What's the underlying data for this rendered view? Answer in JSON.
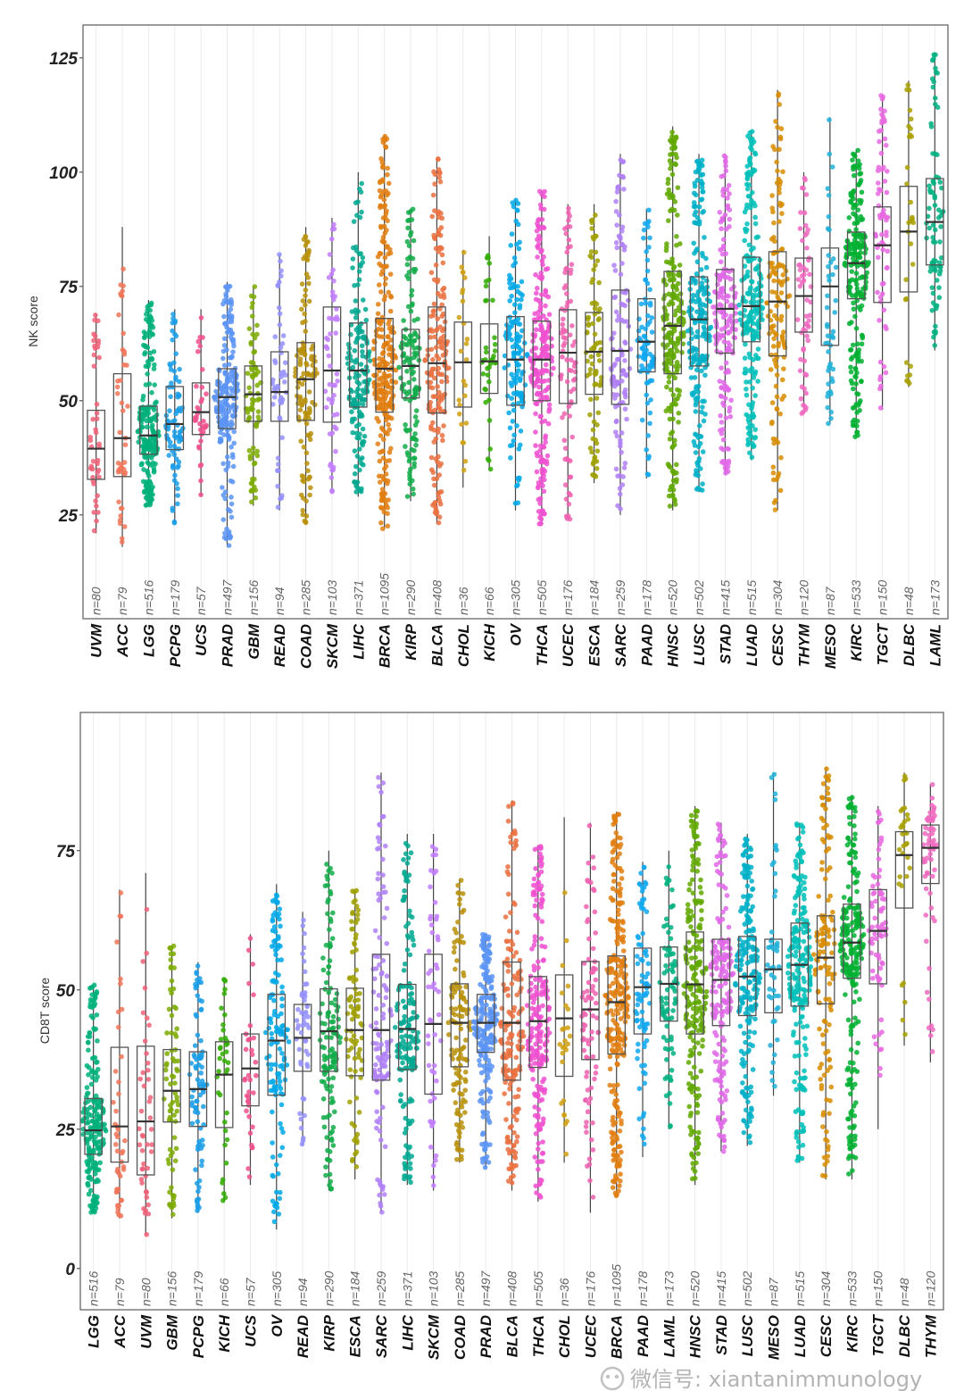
{
  "colors": {
    "UVM": "#f06078",
    "ACC": "#f07458",
    "LGG": "#00b07a",
    "PCPG": "#1a9ee8",
    "UCS": "#f0508c",
    "PRAD": "#5a94f5",
    "GBM": "#7caa00",
    "READ": "#9590ff",
    "COAD": "#b8900a",
    "SKCM": "#c27cff",
    "LIHC": "#00a890",
    "BRCA": "#e07e10",
    "KIRP": "#10ac48",
    "BLCA": "#ea7040",
    "CHOL": "#d0a010",
    "KICH": "#30ac00",
    "OV": "#00a8e8",
    "THCA": "#f050d0",
    "UCEC": "#f060b0",
    "ESCA": "#a0a000",
    "SARC": "#b080f8",
    "PAAD": "#10a8f0",
    "HNSC": "#60a800",
    "LUSC": "#00b0c8",
    "STAD": "#e068e8",
    "LUAD": "#00c0b8",
    "CESC": "#d88c00",
    "THYM": "#f068c0",
    "MESO": "#20b0d8",
    "KIRC": "#00b030",
    "TGCT": "#e868e0",
    "DLBC": "#a8a000",
    "LAML": "#00b080"
  },
  "chart_data": [
    {
      "type": "box",
      "ylabel": "NK score",
      "xlabel": "",
      "ylim": [
        2.3,
        132.2
      ],
      "yticks": [
        25,
        50,
        75,
        100,
        125
      ],
      "grid": "vertical",
      "points": "jittered",
      "boxes": [
        {
          "category": "UVM",
          "n": 80,
          "lower_whisker": 21,
          "q1": 32.8,
          "median": 39.5,
          "q3": 47.9,
          "upper_whisker": 69
        },
        {
          "category": "ACC",
          "n": 79,
          "lower_whisker": 18,
          "q1": 33.4,
          "median": 41.8,
          "q3": 55.9,
          "upper_whisker": 88
        },
        {
          "category": "LGG",
          "n": 516,
          "lower_whisker": 27,
          "q1": 38.3,
          "median": 42.4,
          "q3": 48.8,
          "upper_whisker": 72
        },
        {
          "category": "PCPG",
          "n": 179,
          "lower_whisker": 23,
          "q1": 39.3,
          "median": 44.9,
          "q3": 53.1,
          "upper_whisker": 70
        },
        {
          "category": "UCS",
          "n": 57,
          "lower_whisker": 29,
          "q1": 42.6,
          "median": 47.5,
          "q3": 53.9,
          "upper_whisker": 70
        },
        {
          "category": "PRAD",
          "n": 497,
          "lower_whisker": 18,
          "q1": 43.9,
          "median": 50.8,
          "q3": 57.0,
          "upper_whisker": 76
        },
        {
          "category": "GBM",
          "n": 156,
          "lower_whisker": 27,
          "q1": 45.5,
          "median": 51.4,
          "q3": 57.6,
          "upper_whisker": 75
        },
        {
          "category": "READ",
          "n": 94,
          "lower_whisker": 26,
          "q1": 45.5,
          "median": 51.9,
          "q3": 60.7,
          "upper_whisker": 82
        },
        {
          "category": "COAD",
          "n": 285,
          "lower_whisker": 23,
          "q1": 45.7,
          "median": 54.7,
          "q3": 62.7,
          "upper_whisker": 88
        },
        {
          "category": "SKCM",
          "n": 103,
          "lower_whisker": 30,
          "q1": 45.3,
          "median": 56.6,
          "q3": 70.5,
          "upper_whisker": 90
        },
        {
          "category": "LIHC",
          "n": 371,
          "lower_whisker": 29,
          "q1": 48.6,
          "median": 56.6,
          "q3": 67.0,
          "upper_whisker": 100
        },
        {
          "category": "BRCA",
          "n": 1095,
          "lower_whisker": 22,
          "q1": 47.5,
          "median": 57.0,
          "q3": 68.0,
          "upper_whisker": 108
        },
        {
          "category": "KIRP",
          "n": 290,
          "lower_whisker": 28,
          "q1": 50.6,
          "median": 57.6,
          "q3": 65.6,
          "upper_whisker": 92
        },
        {
          "category": "BLCA",
          "n": 408,
          "lower_whisker": 23,
          "q1": 47.3,
          "median": 58.2,
          "q3": 70.5,
          "upper_whisker": 103
        },
        {
          "category": "CHOL",
          "n": 36,
          "lower_whisker": 31,
          "q1": 48.6,
          "median": 58.4,
          "q3": 67.2,
          "upper_whisker": 83
        },
        {
          "category": "KICH",
          "n": 66,
          "lower_whisker": 35,
          "q1": 51.6,
          "median": 58.6,
          "q3": 66.8,
          "upper_whisker": 86
        },
        {
          "category": "OV",
          "n": 305,
          "lower_whisker": 26,
          "q1": 49.0,
          "median": 59.0,
          "q3": 68.4,
          "upper_whisker": 94
        },
        {
          "category": "THCA",
          "n": 505,
          "lower_whisker": 23,
          "q1": 50.0,
          "median": 59.0,
          "q3": 67.4,
          "upper_whisker": 96
        },
        {
          "category": "UCEC",
          "n": 176,
          "lower_whisker": 24,
          "q1": 49.4,
          "median": 60.5,
          "q3": 69.9,
          "upper_whisker": 93
        },
        {
          "category": "ESCA",
          "n": 184,
          "lower_whisker": 32,
          "q1": 51.4,
          "median": 60.7,
          "q3": 69.3,
          "upper_whisker": 93
        },
        {
          "category": "SARC",
          "n": 259,
          "lower_whisker": 25,
          "q1": 49.2,
          "median": 60.9,
          "q3": 74.2,
          "upper_whisker": 104
        },
        {
          "category": "PAAD",
          "n": 178,
          "lower_whisker": 33,
          "q1": 56.3,
          "median": 62.9,
          "q3": 72.3,
          "upper_whisker": 92
        },
        {
          "category": "HNSC",
          "n": 520,
          "lower_whisker": 26,
          "q1": 55.9,
          "median": 66.4,
          "q3": 78.3,
          "upper_whisker": 110
        },
        {
          "category": "LUSC",
          "n": 502,
          "lower_whisker": 30,
          "q1": 57.6,
          "median": 67.8,
          "q3": 77.1,
          "upper_whisker": 104
        },
        {
          "category": "STAD",
          "n": 415,
          "lower_whisker": 34,
          "q1": 60.4,
          "median": 70.1,
          "q3": 78.7,
          "upper_whisker": 104
        },
        {
          "category": "LUAD",
          "n": 515,
          "lower_whisker": 37,
          "q1": 62.9,
          "median": 70.7,
          "q3": 81.4,
          "upper_whisker": 109
        },
        {
          "category": "CESC",
          "n": 304,
          "lower_whisker": 26,
          "q1": 59.8,
          "median": 71.7,
          "q3": 82.6,
          "upper_whisker": 118
        },
        {
          "category": "THYM",
          "n": 120,
          "lower_whisker": 47,
          "q1": 65.0,
          "median": 72.9,
          "q3": 81.2,
          "upper_whisker": 100
        },
        {
          "category": "MESO",
          "n": 87,
          "lower_whisker": 45,
          "q1": 62.1,
          "median": 75.0,
          "q3": 83.4,
          "upper_whisker": 112
        },
        {
          "category": "KIRC",
          "n": 533,
          "lower_whisker": 42,
          "q1": 72.3,
          "median": 80.1,
          "q3": 86.9,
          "upper_whisker": 105
        },
        {
          "category": "TGCT",
          "n": 150,
          "lower_whisker": 48,
          "q1": 71.5,
          "median": 84.0,
          "q3": 92.4,
          "upper_whisker": 117
        },
        {
          "category": "DLBC",
          "n": 48,
          "lower_whisker": 53,
          "q1": 73.8,
          "median": 87.0,
          "q3": 96.9,
          "upper_whisker": 120
        },
        {
          "category": "LAML",
          "n": 173,
          "lower_whisker": 61,
          "q1": 79.7,
          "median": 89.1,
          "q3": 98.6,
          "upper_whisker": 126
        }
      ]
    },
    {
      "type": "box",
      "ylabel": "CD8T score",
      "xlabel": "",
      "ylim": [
        -7.4,
        99.8
      ],
      "yticks": [
        0,
        25,
        50,
        75
      ],
      "grid": "vertical",
      "points": "jittered",
      "boxes": [
        {
          "category": "LGG",
          "n": 516,
          "lower_whisker": 10,
          "q1": 20.5,
          "median": 24.8,
          "q3": 30.5,
          "upper_whisker": 51
        },
        {
          "category": "ACC",
          "n": 79,
          "lower_whisker": 9,
          "q1": 19.1,
          "median": 25.5,
          "q3": 39.7,
          "upper_whisker": 68
        },
        {
          "category": "UVM",
          "n": 80,
          "lower_whisker": 6,
          "q1": 16.8,
          "median": 26.4,
          "q3": 39.9,
          "upper_whisker": 71
        },
        {
          "category": "GBM",
          "n": 156,
          "lower_whisker": 9,
          "q1": 26.3,
          "median": 31.9,
          "q3": 39.3,
          "upper_whisker": 58
        },
        {
          "category": "PCPG",
          "n": 179,
          "lower_whisker": 10,
          "q1": 25.5,
          "median": 32.2,
          "q3": 38.9,
          "upper_whisker": 55
        },
        {
          "category": "KICH",
          "n": 66,
          "lower_whisker": 12,
          "q1": 25.3,
          "median": 34.8,
          "q3": 40.7,
          "upper_whisker": 52
        },
        {
          "category": "UCS",
          "n": 57,
          "lower_whisker": 15,
          "q1": 29.2,
          "median": 35.9,
          "q3": 42.1,
          "upper_whisker": 60
        },
        {
          "category": "OV",
          "n": 305,
          "lower_whisker": 7,
          "q1": 31.1,
          "median": 40.9,
          "q3": 49.2,
          "upper_whisker": 69
        },
        {
          "category": "READ",
          "n": 94,
          "lower_whisker": 22,
          "q1": 35.4,
          "median": 41.4,
          "q3": 47.4,
          "upper_whisker": 64
        },
        {
          "category": "KIRP",
          "n": 290,
          "lower_whisker": 14,
          "q1": 35.4,
          "median": 42.6,
          "q3": 50.2,
          "upper_whisker": 75
        },
        {
          "category": "ESCA",
          "n": 184,
          "lower_whisker": 16,
          "q1": 34.6,
          "median": 42.8,
          "q3": 50.3,
          "upper_whisker": 68
        },
        {
          "category": "SARC",
          "n": 259,
          "lower_whisker": 10,
          "q1": 33.8,
          "median": 42.8,
          "q3": 56.4,
          "upper_whisker": 89
        },
        {
          "category": "LIHC",
          "n": 371,
          "lower_whisker": 15,
          "q1": 35.7,
          "median": 43.0,
          "q3": 51.0,
          "upper_whisker": 78
        },
        {
          "category": "SKCM",
          "n": 103,
          "lower_whisker": 14,
          "q1": 31.3,
          "median": 43.9,
          "q3": 56.4,
          "upper_whisker": 78
        },
        {
          "category": "COAD",
          "n": 285,
          "lower_whisker": 19,
          "q1": 36.2,
          "median": 44.1,
          "q3": 51.1,
          "upper_whisker": 70
        },
        {
          "category": "PRAD",
          "n": 497,
          "lower_whisker": 18,
          "q1": 38.8,
          "median": 44.1,
          "q3": 49.2,
          "upper_whisker": 60
        },
        {
          "category": "BLCA",
          "n": 408,
          "lower_whisker": 14,
          "q1": 33.8,
          "median": 44.1,
          "q3": 55.0,
          "upper_whisker": 84
        },
        {
          "category": "THCA",
          "n": 505,
          "lower_whisker": 12,
          "q1": 36.1,
          "median": 44.4,
          "q3": 52.4,
          "upper_whisker": 76
        },
        {
          "category": "CHOL",
          "n": 36,
          "lower_whisker": 19,
          "q1": 34.5,
          "median": 44.9,
          "q3": 52.7,
          "upper_whisker": 81
        },
        {
          "category": "UCEC",
          "n": 176,
          "lower_whisker": 10,
          "q1": 37.5,
          "median": 46.5,
          "q3": 55.1,
          "upper_whisker": 80
        },
        {
          "category": "BRCA",
          "n": 1095,
          "lower_whisker": 13,
          "q1": 38.5,
          "median": 47.8,
          "q3": 56.1,
          "upper_whisker": 82
        },
        {
          "category": "PAAD",
          "n": 178,
          "lower_whisker": 20,
          "q1": 42.1,
          "median": 50.5,
          "q3": 57.5,
          "upper_whisker": 73
        },
        {
          "category": "LAML",
          "n": 173,
          "lower_whisker": 25,
          "q1": 44.4,
          "median": 51.1,
          "q3": 57.7,
          "upper_whisker": 75
        },
        {
          "category": "HNSC",
          "n": 520,
          "lower_whisker": 15,
          "q1": 42.1,
          "median": 51.0,
          "q3": 60.4,
          "upper_whisker": 83
        },
        {
          "category": "STAD",
          "n": 415,
          "lower_whisker": 21,
          "q1": 43.6,
          "median": 51.8,
          "q3": 59.1,
          "upper_whisker": 80
        },
        {
          "category": "LUSC",
          "n": 502,
          "lower_whisker": 22,
          "q1": 45.4,
          "median": 52.4,
          "q3": 59.6,
          "upper_whisker": 78
        },
        {
          "category": "MESO",
          "n": 87,
          "lower_whisker": 31,
          "q1": 45.9,
          "median": 53.7,
          "q3": 59.1,
          "upper_whisker": 89
        },
        {
          "category": "LUAD",
          "n": 515,
          "lower_whisker": 19,
          "q1": 47.1,
          "median": 54.5,
          "q3": 62.0,
          "upper_whisker": 80
        },
        {
          "category": "CESC",
          "n": 304,
          "lower_whisker": 16,
          "q1": 47.5,
          "median": 55.8,
          "q3": 63.3,
          "upper_whisker": 90
        },
        {
          "category": "KIRC",
          "n": 533,
          "lower_whisker": 16,
          "q1": 52.1,
          "median": 58.5,
          "q3": 65.4,
          "upper_whisker": 85
        },
        {
          "category": "TGCT",
          "n": 150,
          "lower_whisker": 25,
          "q1": 51.1,
          "median": 60.6,
          "q3": 68.0,
          "upper_whisker": 83
        },
        {
          "category": "DLBC",
          "n": 48,
          "lower_whisker": 40,
          "q1": 64.7,
          "median": 74.2,
          "q3": 78.4,
          "upper_whisker": 89
        },
        {
          "category": "THYM",
          "n": 120,
          "lower_whisker": 37,
          "q1": 69.1,
          "median": 75.5,
          "q3": 79.6,
          "upper_whisker": 87
        }
      ]
    }
  ],
  "watermark": {
    "text": "微信号: xiantanimmunology"
  }
}
